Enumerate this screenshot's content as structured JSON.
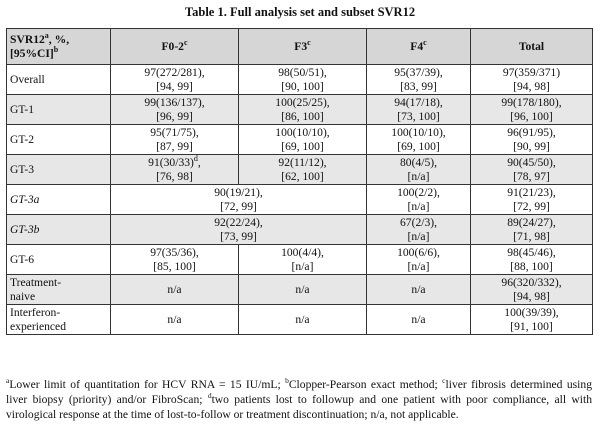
{
  "title": "Table 1.  Full analysis set and subset SVR12",
  "header": {
    "col0": {
      "a": "SVR12",
      "sup1": "a",
      "b": ", %,",
      "c": "[95%CI]",
      "sup2": "b"
    },
    "f02": {
      "t": "F0-2",
      "sup": "c"
    },
    "f3": {
      "t": "F3",
      "sup": "c"
    },
    "f4": {
      "t": "F4",
      "sup": "c"
    },
    "total": "Total"
  },
  "rows": {
    "overall": {
      "label": "Overall",
      "f02": [
        "97(272/281),",
        "[94, 99]"
      ],
      "f3": [
        "98(50/51),",
        "[90, 100]"
      ],
      "f4": [
        "95(37/39),",
        "[83, 99]"
      ],
      "total": [
        "97(359/371)",
        "[94, 98]"
      ]
    },
    "gt1": {
      "label": "GT-1",
      "f02": [
        "99(136/137),",
        "[96, 99]"
      ],
      "f3": [
        "100(25/25),",
        "[86, 100]"
      ],
      "f4": [
        "94(17/18),",
        "[73, 100]"
      ],
      "total": [
        "99(178/180),",
        "[96, 100]"
      ]
    },
    "gt2": {
      "label": "GT-2",
      "f02": [
        "95(71/75),",
        "[87, 99]"
      ],
      "f3": [
        "100(10/10),",
        "[69, 100]"
      ],
      "f4": [
        "100(10/10),",
        "[69, 100]"
      ],
      "total": [
        "96(91/95),",
        "[90, 99]"
      ]
    },
    "gt3": {
      "label": "GT-3",
      "f02": [
        "91(30/33)",
        "[76, 98]"
      ],
      "f02_sup": "d",
      "f02_comma": ",",
      "f3": [
        "92(11/12),",
        "[62, 100]"
      ],
      "f4": [
        "80(4/5),",
        "[n/a]"
      ],
      "total": [
        "90(45/50),",
        "[78, 97]"
      ]
    },
    "gt3a": {
      "label": "GT-3a",
      "f023": [
        "90(19/21),",
        "[72, 99]"
      ],
      "f4": [
        "100(2/2),",
        "[n/a]"
      ],
      "total": [
        "91(21/23),",
        "[72, 99]"
      ]
    },
    "gt3b": {
      "label": "GT-3b",
      "f023": [
        "92(22/24),",
        "[73, 99]"
      ],
      "f4": [
        "67(2/3),",
        "[n/a]"
      ],
      "total": [
        "89(24/27),",
        "[71, 98]"
      ]
    },
    "gt6": {
      "label": "GT-6",
      "f02": [
        "97(35/36),",
        "[85, 100]"
      ],
      "f3": [
        "100(4/4),",
        "[n/a]"
      ],
      "f4": [
        "100(6/6),",
        "[n/a]"
      ],
      "total": [
        "98(45/46),",
        "[88, 100]"
      ]
    },
    "tn": {
      "label1": "Treatment-",
      "label2": "naive",
      "f02": "n/a",
      "f3": "n/a",
      "f4": "n/a",
      "total": [
        "96(320/332),",
        "[94, 98]"
      ]
    },
    "ie": {
      "label1": "Interferon-",
      "label2": "experienced",
      "f02": "n/a",
      "f3": "n/a",
      "f4": "n/a",
      "total": [
        "100(39/39),",
        "[91, 100]"
      ]
    }
  },
  "footnote": {
    "a_sup": "a",
    "a_text": "Lower limit of quantitation for HCV RNA = 15 IU/mL; ",
    "b_sup": "b",
    "b_text": "Clopper-Pearson exact method; ",
    "c_sup": "c",
    "c_text": "liver fibrosis determined using liver biopsy (priority) and/or FibroScan; ",
    "d_sup": "d",
    "d_text": "two patients lost to followup and one patient with poor compliance, all with virological response at the time of lost-to-follow or treatment discontinuation; n/a, not applicable."
  }
}
